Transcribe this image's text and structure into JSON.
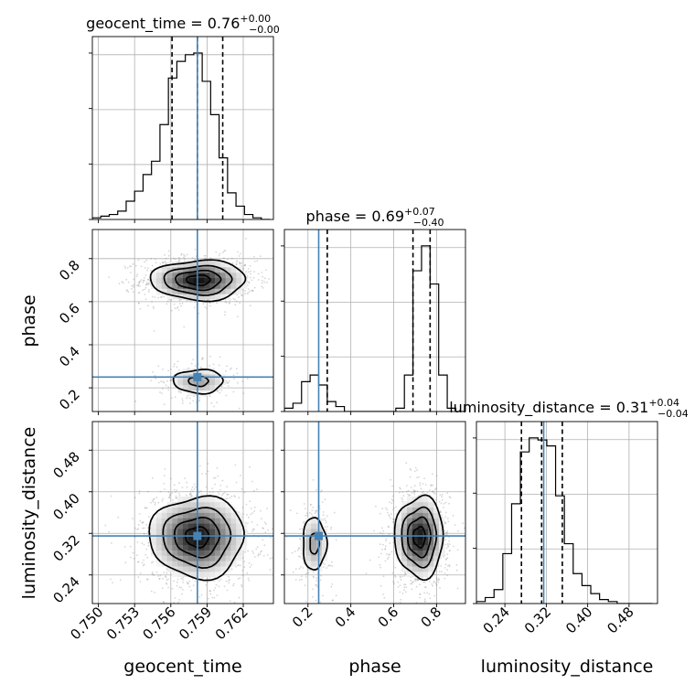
{
  "chart_data": {
    "type": "corner",
    "parameters": [
      "geocent_time",
      "phase",
      "luminosity_distance"
    ],
    "truth": {
      "geocent_time": 0.7582,
      "phase": 0.25,
      "luminosity_distance": 0.315
    },
    "truth_color": "#4682b4",
    "grid": true,
    "axes": {
      "geocent_time": {
        "range": [
          0.7495,
          0.7645
        ],
        "ticks": [
          0.75,
          0.753,
          0.756,
          0.759,
          0.762
        ],
        "tick_labels": [
          "0.750",
          "0.753",
          "0.756",
          "0.759",
          "0.762"
        ],
        "label": "geocent_time"
      },
      "phase": {
        "range": [
          0.09,
          0.935
        ],
        "ticks": [
          0.2,
          0.4,
          0.6,
          0.8
        ],
        "tick_labels": [
          "0.2",
          "0.4",
          "0.6",
          "0.8"
        ],
        "label": "phase"
      },
      "luminosity_distance": {
        "range": [
          0.185,
          0.535
        ],
        "ticks": [
          0.24,
          0.32,
          0.4,
          0.48
        ],
        "tick_labels": [
          "0.24",
          "0.32",
          "0.40",
          "0.48"
        ],
        "label": "luminosity_distance"
      }
    },
    "marginals": [
      {
        "parameter": "geocent_time",
        "title": {
          "name": "geocent_time",
          "value": "0.76",
          "plus": "+0.00",
          "minus": "−0.00"
        },
        "quantiles": [
          0.7561,
          0.7582,
          0.7603
        ],
        "bin_edges": [
          0.7495,
          0.7502,
          0.7509,
          0.7516,
          0.7523,
          0.753,
          0.7537,
          0.7544,
          0.7551,
          0.7558,
          0.7565,
          0.7572,
          0.7579,
          0.7586,
          0.7593,
          0.76,
          0.7607,
          0.7614,
          0.7621,
          0.7628,
          0.7635,
          0.7642
        ],
        "counts": [
          1,
          2,
          3,
          5,
          11,
          17,
          27,
          35,
          57,
          85,
          95,
          99,
          100,
          83,
          63,
          37,
          16,
          8,
          3,
          1,
          0
        ]
      },
      {
        "parameter": "phase",
        "title": {
          "name": "phase",
          "value": "0.69",
          "plus": "+0.07",
          "minus": "−0.40"
        },
        "quantiles": [
          0.29,
          0.69,
          0.77
        ],
        "bin_edges": [
          0.09,
          0.13,
          0.17,
          0.21,
          0.25,
          0.29,
          0.33,
          0.37,
          0.41,
          0.45,
          0.49,
          0.53,
          0.57,
          0.61,
          0.65,
          0.69,
          0.73,
          0.77,
          0.81,
          0.85,
          0.89,
          0.93
        ],
        "counts": [
          2,
          5,
          18,
          22,
          16,
          6,
          3,
          0,
          0,
          0,
          0,
          0,
          0,
          2,
          22,
          85,
          100,
          77,
          22,
          2,
          0
        ]
      },
      {
        "parameter": "luminosity_distance",
        "title": {
          "name": "luminosity_distance",
          "value": "0.31",
          "plus": "+0.04",
          "minus": "−0.04"
        },
        "quantiles": [
          0.272,
          0.311,
          0.351
        ],
        "bin_edges": [
          0.185,
          0.202,
          0.219,
          0.236,
          0.253,
          0.27,
          0.287,
          0.304,
          0.321,
          0.338,
          0.355,
          0.372,
          0.389,
          0.406,
          0.423,
          0.44,
          0.457,
          0.474,
          0.491,
          0.508,
          0.525
        ],
        "counts": [
          1,
          3,
          7,
          25,
          50,
          76,
          83,
          82,
          79,
          54,
          30,
          15,
          9,
          5,
          2,
          1,
          0,
          0,
          0,
          0
        ]
      }
    ],
    "joint": [
      {
        "x": "geocent_time",
        "y": "phase",
        "modes": [
          {
            "x": 0.7583,
            "y": 0.7,
            "sx": 0.0019,
            "sy": 0.045,
            "weight": 0.82
          },
          {
            "x": 0.7583,
            "y": 0.23,
            "sx": 0.0013,
            "sy": 0.035,
            "weight": 0.18
          }
        ]
      },
      {
        "x": "geocent_time",
        "y": "luminosity_distance",
        "modes": [
          {
            "x": 0.7582,
            "y": 0.313,
            "sx": 0.0019,
            "sy": 0.038,
            "weight": 1.0
          }
        ]
      },
      {
        "x": "phase",
        "y": "luminosity_distance",
        "modes": [
          {
            "x": 0.72,
            "y": 0.313,
            "sx": 0.055,
            "sy": 0.038,
            "weight": 0.82
          },
          {
            "x": 0.23,
            "y": 0.3,
            "sx": 0.035,
            "sy": 0.032,
            "weight": 0.18
          }
        ]
      }
    ]
  }
}
